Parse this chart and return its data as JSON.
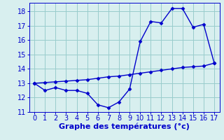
{
  "x": [
    0,
    1,
    2,
    3,
    4,
    5,
    6,
    7,
    8,
    9,
    10,
    11,
    12,
    13,
    14,
    15,
    16,
    17
  ],
  "y_main": [
    13.0,
    12.5,
    12.7,
    12.5,
    12.5,
    12.3,
    11.5,
    11.3,
    11.7,
    12.6,
    15.9,
    17.3,
    17.2,
    18.2,
    18.2,
    16.9,
    17.1,
    14.4
  ],
  "y_trend": [
    13.0,
    13.05,
    13.1,
    13.15,
    13.2,
    13.25,
    13.35,
    13.45,
    13.5,
    13.6,
    13.7,
    13.8,
    13.9,
    14.0,
    14.1,
    14.15,
    14.2,
    14.4
  ],
  "line_color": "#0000cc",
  "bg_color": "#d8efef",
  "grid_color": "#99cccc",
  "xlabel": "Graphe des températures (°c)",
  "xlim": [
    -0.5,
    17.5
  ],
  "ylim": [
    11.0,
    18.6
  ],
  "yticks": [
    11,
    12,
    13,
    14,
    15,
    16,
    17,
    18
  ],
  "xticks": [
    0,
    1,
    2,
    3,
    4,
    5,
    6,
    7,
    8,
    9,
    10,
    11,
    12,
    13,
    14,
    15,
    16,
    17
  ],
  "marker": "D",
  "marker_size": 2.5,
  "line_width": 1.0,
  "xlabel_fontsize": 8,
  "tick_fontsize": 7
}
